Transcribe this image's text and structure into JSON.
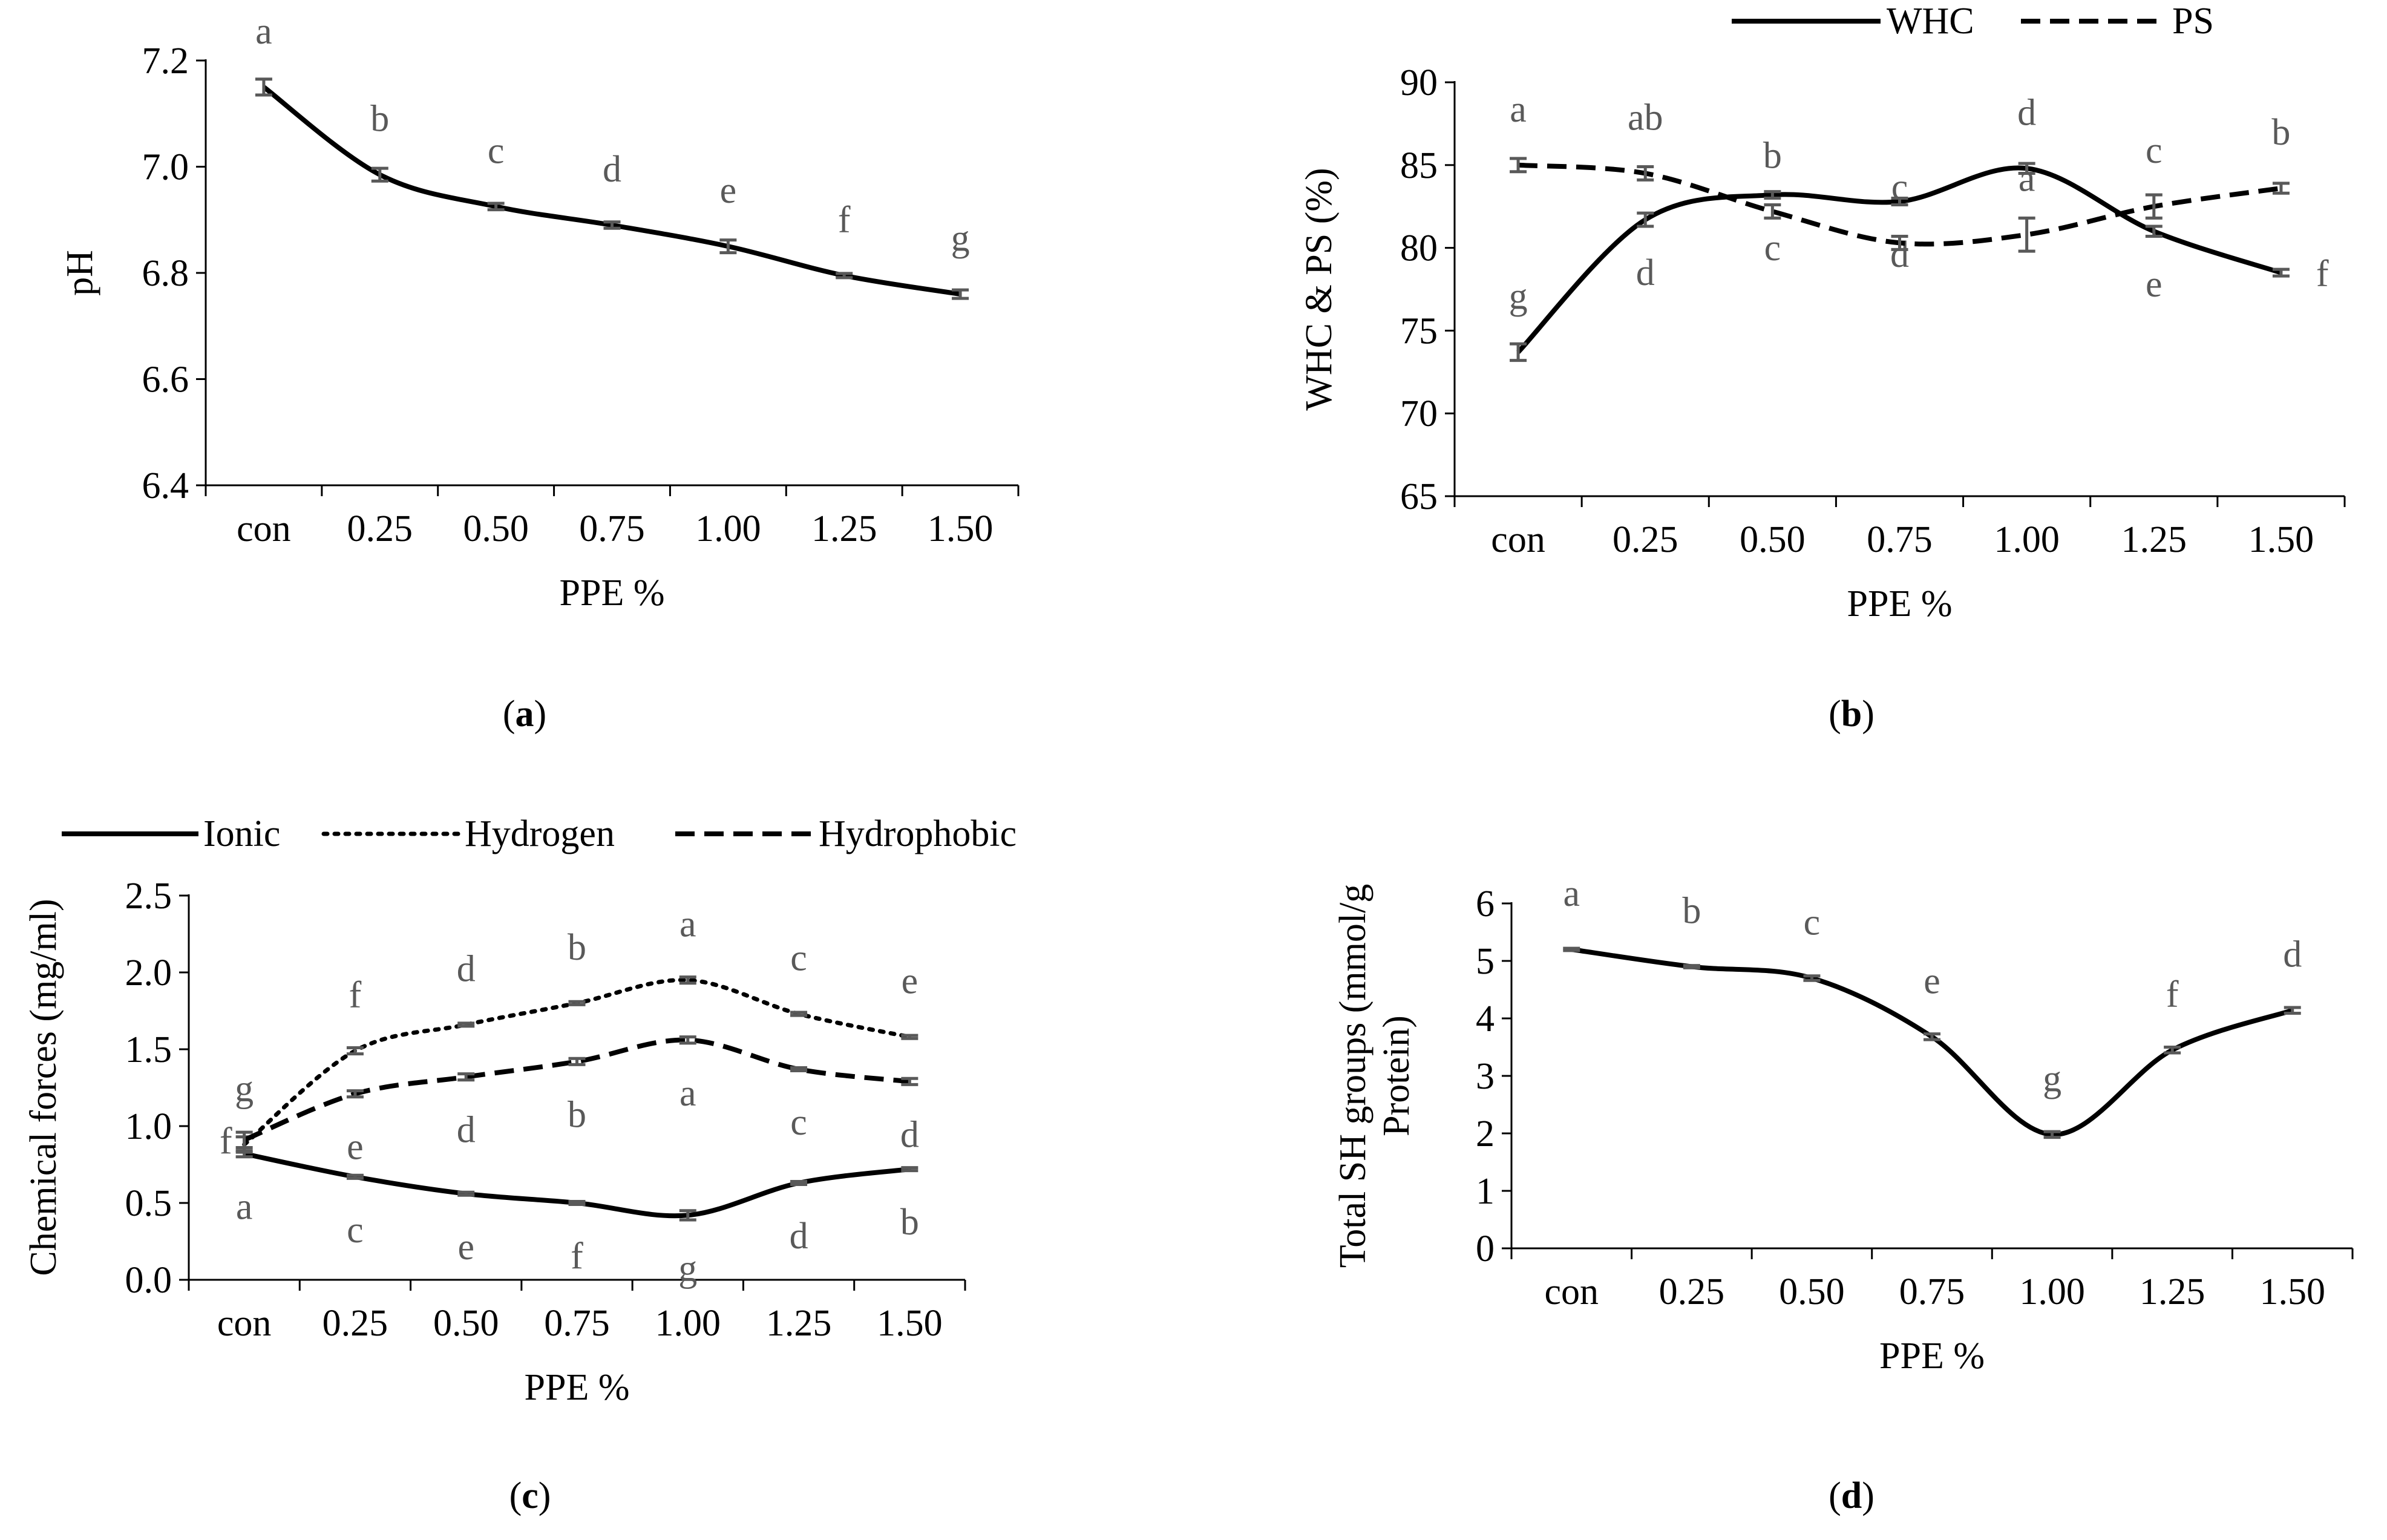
{
  "colors": {
    "line": "#000000",
    "errorbar": "#595959",
    "significance": "#595959"
  },
  "panels_text": [
    "(a)",
    "(b)",
    "(c)",
    "(d)"
  ],
  "chart_data": [
    {
      "type": "line",
      "panel_label": "a",
      "categories": [
        "con",
        "0.25",
        "0.50",
        "0.75",
        "1.00",
        "1.25",
        "1.50"
      ],
      "xlabel": "PPE %",
      "ylabel": "pH",
      "ylim": [
        6.4,
        7.2
      ],
      "yticks": [
        "6.4",
        "6.6",
        "6.8",
        "7.0",
        "7.2"
      ],
      "grid": false,
      "series": [
        {
          "values": [
            7.15,
            6.985,
            6.925,
            6.89,
            6.85,
            6.795,
            6.76
          ],
          "errors": [
            0.015,
            0.012,
            0.006,
            0.006,
            0.012,
            0.004,
            0.008
          ],
          "style": "solid",
          "letters": [
            "a",
            "b",
            "c",
            "d",
            "e",
            "f",
            "g"
          ],
          "letter_pos": "above"
        }
      ]
    },
    {
      "type": "line",
      "panel_label": "b",
      "categories": [
        "con",
        "0.25",
        "0.50",
        "0.75",
        "1.00",
        "1.25",
        "1.50"
      ],
      "xlabel": "PPE %",
      "ylabel": "WHC & PS (%)",
      "ylim": [
        65,
        90
      ],
      "yticks": [
        "65",
        "70",
        "75",
        "80",
        "85",
        "90"
      ],
      "grid": false,
      "legend_position": "top",
      "series": [
        {
          "name": "WHC",
          "values": [
            73.7,
            81.7,
            83.2,
            82.8,
            84.8,
            81.0,
            78.5
          ],
          "errors": [
            0.5,
            0.4,
            0.2,
            0.2,
            0.3,
            0.3,
            0.2
          ],
          "style": "solid",
          "letters": [
            "g",
            "d",
            "c",
            "d",
            "d",
            "e",
            "f"
          ],
          "letter_pos": [
            "above",
            "below",
            "below",
            "below",
            "above",
            "below",
            "right"
          ]
        },
        {
          "name": "PS",
          "values": [
            85.0,
            84.5,
            82.2,
            80.3,
            80.8,
            82.5,
            83.6
          ],
          "errors": [
            0.4,
            0.4,
            0.4,
            0.4,
            1.0,
            0.7,
            0.3
          ],
          "style": "dashed",
          "letters": [
            "a",
            "ab",
            "b",
            "c",
            "a",
            "c",
            "b"
          ],
          "letter_pos": [
            "above",
            "above",
            "above",
            "above",
            "above",
            "above",
            "above"
          ]
        }
      ]
    },
    {
      "type": "line",
      "panel_label": "c",
      "categories": [
        "con",
        "0.25",
        "0.50",
        "0.75",
        "1.00",
        "1.25",
        "1.50"
      ],
      "xlabel": "PPE %",
      "ylabel": "Chemical forces (mg/ml)",
      "ylim": [
        0.0,
        2.5
      ],
      "yticks": [
        "0.0",
        "0.5",
        "1.0",
        "1.5",
        "2.0",
        "2.5"
      ],
      "grid": false,
      "legend_position": "top",
      "series": [
        {
          "name": "Ionic",
          "values": [
            0.82,
            0.67,
            0.56,
            0.5,
            0.42,
            0.63,
            0.72
          ],
          "errors": [
            0.02,
            0.01,
            0.01,
            0.01,
            0.03,
            0.01,
            0.01
          ],
          "style": "solid",
          "letters": [
            "a",
            "c",
            "e",
            "f",
            "g",
            "d",
            "b"
          ],
          "letter_pos": "below"
        },
        {
          "name": "Hydrogen",
          "values": [
            0.88,
            1.49,
            1.66,
            1.8,
            1.95,
            1.73,
            1.58
          ],
          "errors": [
            0.05,
            0.02,
            0.01,
            0.01,
            0.02,
            0.01,
            0.01
          ],
          "style": "dotted",
          "letters": [
            "g",
            "f",
            "d",
            "b",
            "a",
            "c",
            "e"
          ],
          "letter_pos": "above"
        },
        {
          "name": "Hydrophobic",
          "values": [
            0.91,
            1.21,
            1.32,
            1.42,
            1.56,
            1.37,
            1.29
          ],
          "errors": [
            0.05,
            0.02,
            0.02,
            0.02,
            0.02,
            0.01,
            0.02
          ],
          "style": "dashed",
          "letters": [
            "f",
            "e",
            "d",
            "b",
            "a",
            "c",
            "d"
          ],
          "letter_pos": [
            "left",
            "below",
            "below",
            "below",
            "below",
            "below",
            "below"
          ]
        }
      ]
    },
    {
      "type": "line",
      "panel_label": "d",
      "categories": [
        "con",
        "0.25",
        "0.50",
        "0.75",
        "1.00",
        "1.25",
        "1.50"
      ],
      "xlabel": "PPE %",
      "ylabel_lines": [
        "Total SH groups (mmol/g",
        "Protein)"
      ],
      "ylim": [
        0,
        6
      ],
      "yticks": [
        "0",
        "1",
        "2",
        "3",
        "4",
        "5",
        "6"
      ],
      "grid": false,
      "series": [
        {
          "values": [
            5.2,
            4.9,
            4.7,
            3.68,
            1.98,
            3.45,
            4.14
          ],
          "errors": [
            0.02,
            0.02,
            0.04,
            0.05,
            0.05,
            0.05,
            0.05
          ],
          "style": "solid",
          "letters": [
            "a",
            "b",
            "c",
            "e",
            "g",
            "f",
            "d"
          ],
          "letter_pos": "above"
        }
      ]
    }
  ]
}
